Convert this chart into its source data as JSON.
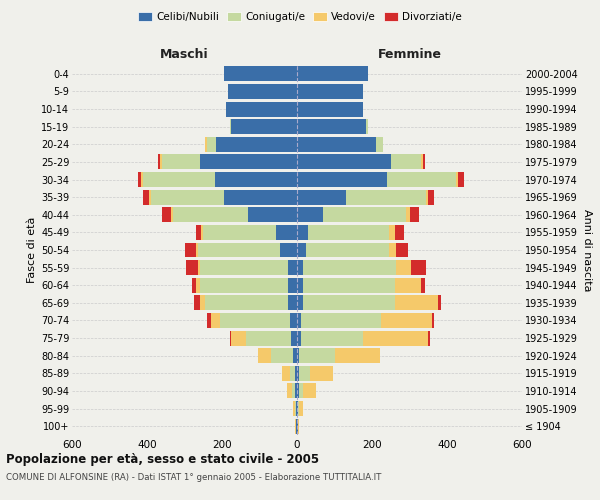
{
  "age_groups": [
    "100+",
    "95-99",
    "90-94",
    "85-89",
    "80-84",
    "75-79",
    "70-74",
    "65-69",
    "60-64",
    "55-59",
    "50-54",
    "45-49",
    "40-44",
    "35-39",
    "30-34",
    "25-29",
    "20-24",
    "15-19",
    "10-14",
    "5-9",
    "0-4"
  ],
  "birth_years": [
    "≤ 1904",
    "1905-1909",
    "1910-1914",
    "1915-1919",
    "1920-1924",
    "1925-1929",
    "1930-1934",
    "1935-1939",
    "1940-1944",
    "1945-1949",
    "1950-1954",
    "1955-1959",
    "1960-1964",
    "1965-1969",
    "1970-1974",
    "1975-1979",
    "1980-1984",
    "1985-1989",
    "1990-1994",
    "1995-1999",
    "2000-2004"
  ],
  "colors": {
    "celibi": "#3a6ea8",
    "coniugati": "#c5d9a0",
    "vedovi": "#f5c96a",
    "divorziati": "#d32b2b"
  },
  "maschi": {
    "celibi": [
      2,
      3,
      5,
      5,
      10,
      15,
      20,
      25,
      25,
      25,
      45,
      55,
      130,
      195,
      220,
      260,
      215,
      175,
      190,
      185,
      195
    ],
    "coniugati": [
      2,
      3,
      8,
      15,
      60,
      120,
      185,
      220,
      235,
      235,
      220,
      195,
      200,
      195,
      190,
      100,
      25,
      5,
      0,
      0,
      0
    ],
    "vedovi": [
      1,
      5,
      15,
      20,
      35,
      40,
      25,
      15,
      10,
      5,
      5,
      5,
      5,
      5,
      5,
      5,
      5,
      0,
      0,
      0,
      0
    ],
    "divorziati": [
      0,
      0,
      0,
      0,
      0,
      5,
      10,
      15,
      10,
      30,
      30,
      15,
      25,
      15,
      10,
      5,
      0,
      0,
      0,
      0,
      0
    ]
  },
  "femmine": {
    "celibi": [
      2,
      3,
      5,
      5,
      5,
      10,
      10,
      15,
      15,
      15,
      25,
      30,
      70,
      130,
      240,
      250,
      210,
      185,
      175,
      175,
      190
    ],
    "coniugati": [
      1,
      3,
      10,
      30,
      95,
      165,
      215,
      245,
      245,
      250,
      220,
      215,
      220,
      215,
      185,
      80,
      20,
      5,
      0,
      0,
      0
    ],
    "vedovi": [
      3,
      10,
      35,
      60,
      120,
      175,
      135,
      115,
      70,
      40,
      20,
      15,
      10,
      5,
      5,
      5,
      0,
      0,
      0,
      0,
      0
    ],
    "divorziati": [
      0,
      0,
      0,
      0,
      0,
      5,
      5,
      10,
      10,
      40,
      30,
      25,
      25,
      15,
      15,
      5,
      0,
      0,
      0,
      0,
      0
    ]
  },
  "title": "Popolazione per età, sesso e stato civile - 2005",
  "subtitle": "COMUNE DI ALFONSINE (RA) - Dati ISTAT 1° gennaio 2005 - Elaborazione TUTTITALIA.IT",
  "xlabel_left": "Maschi",
  "xlabel_right": "Femmine",
  "ylabel_left": "Fasce di età",
  "ylabel_right": "Anni di nascita",
  "xlim": 600,
  "bg_color": "#f0f0eb",
  "grid_color": "#cccccc",
  "bar_height": 0.85
}
